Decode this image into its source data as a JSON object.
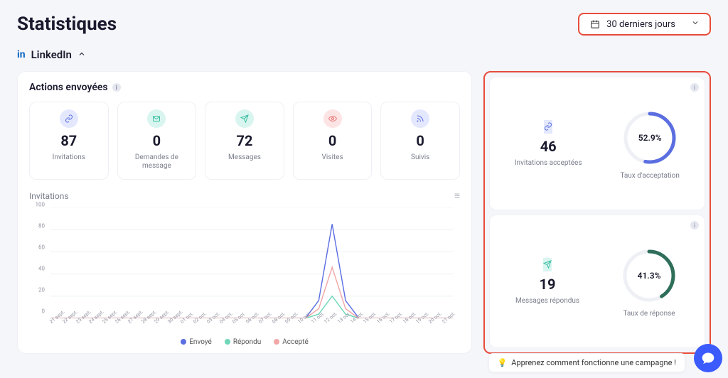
{
  "header": {
    "title": "Statistiques",
    "dateSelector": "30 derniers jours"
  },
  "platform": {
    "icon": "in",
    "name": "LinkedIn"
  },
  "actions": {
    "title": "Actions envoyées",
    "cards": [
      {
        "label": "Invitations",
        "value": "87",
        "iconClass": "ic-blue",
        "iconName": "link-icon"
      },
      {
        "label": "Demandes de message",
        "value": "0",
        "iconClass": "ic-teal",
        "iconName": "envelope-icon"
      },
      {
        "label": "Messages",
        "value": "72",
        "iconClass": "ic-teal",
        "iconName": "send-icon"
      },
      {
        "label": "Visites",
        "value": "0",
        "iconClass": "ic-pink",
        "iconName": "eye-icon"
      },
      {
        "label": "Suivis",
        "value": "0",
        "iconClass": "ic-blue",
        "iconName": "rss-icon"
      }
    ]
  },
  "chart": {
    "title": "Invitations",
    "type": "line",
    "ylim": [
      0,
      100
    ],
    "ytick_step": 20,
    "yticks": [
      "0",
      "20",
      "40",
      "60",
      "80",
      "100"
    ],
    "xlabels": [
      "21 sept.",
      "22 sept.",
      "23 sept.",
      "24 sept.",
      "25 sept.",
      "26 sept.",
      "27 sept.",
      "28 sept.",
      "29 sept.",
      "30 sept.",
      "01 oct.",
      "02 oct.",
      "03 oct.",
      "04 oct.",
      "05 oct.",
      "06 oct.",
      "07 oct.",
      "08 oct.",
      "09 oct.",
      "10 oct.",
      "11 oct.",
      "12 oct.",
      "13 oct.",
      "14 oct.",
      "15 oct.",
      "16 oct.",
      "17 oct.",
      "18 oct.",
      "19 oct.",
      "20 oct.",
      "21 oct."
    ],
    "series": [
      {
        "name": "Envoyé",
        "color": "#5b6ee1",
        "peakIndex": 21,
        "peakValue": 85
      },
      {
        "name": "Répondu",
        "color": "#6fd6b8",
        "peakIndex": 21,
        "peakValue": 20
      },
      {
        "name": "Accepté",
        "color": "#f2a6a6",
        "peakIndex": 21,
        "peakValue": 46
      }
    ],
    "grid_color": "#eef0f5",
    "background_color": "#ffffff",
    "legend": [
      "Envoyé",
      "Répondu",
      "Accepté"
    ]
  },
  "kpis": [
    {
      "iconClass": "ic-blue",
      "iconName": "link-icon",
      "value": "46",
      "label": "Invitations acceptées",
      "rateLabel": "Taux d'acceptation",
      "percent": 52.9,
      "percentText": "52.9%",
      "gaugeColor": "#5b6ee1"
    },
    {
      "iconClass": "ic-teal",
      "iconName": "send-icon",
      "value": "19",
      "label": "Messages répondus",
      "rateLabel": "Taux de réponse",
      "percent": 41.3,
      "percentText": "41.3%",
      "gaugeColor": "#2f6e5a"
    }
  ],
  "footer": {
    "tip": "Apprenez comment fonctionne une campagne !"
  }
}
